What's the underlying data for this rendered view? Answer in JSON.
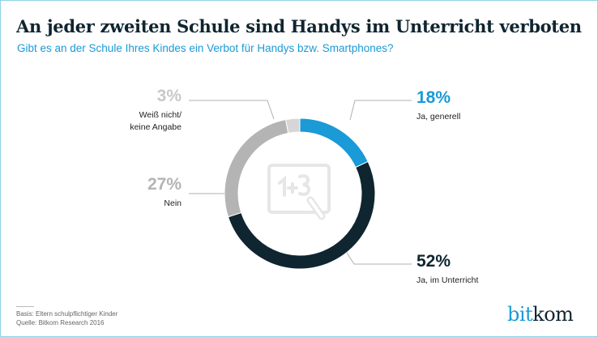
{
  "chart_data": {
    "type": "pie",
    "variant": "donut",
    "title": "An jeder zweiten Schule sind Handys im Unterricht verboten",
    "subtitle": "Gibt es an der Schule Ihres Kindes ein Verbot für Handys bzw. Smartphones?",
    "slices": [
      {
        "label": "Ja, generell",
        "value": 18,
        "display": "18%",
        "color": "#1a9ad6",
        "label_color": "#1a9ad6"
      },
      {
        "label": "Ja, im Unterricht",
        "value": 52,
        "display": "52%",
        "color": "#0f2530",
        "label_color": "#0f2530"
      },
      {
        "label": "Nein",
        "value": 27,
        "display": "27%",
        "color": "#b4b4b4",
        "label_color": "#b4b4b4"
      },
      {
        "label_lines": [
          "Weiß nicht/",
          "keine Angabe"
        ],
        "label": "Weiß nicht/ keine Angabe",
        "value": 3,
        "display": "3%",
        "color": "#d6d6d6",
        "label_color": "#c8c8c8"
      }
    ],
    "center_icon": "chalkboard-icon"
  },
  "footer": {
    "basis": "Basis: Eltern schulpflichtiger Kinder",
    "source": "Quelle: Bitkom Research 2016"
  },
  "logo": {
    "part1": "bit",
    "part2": "kom"
  }
}
